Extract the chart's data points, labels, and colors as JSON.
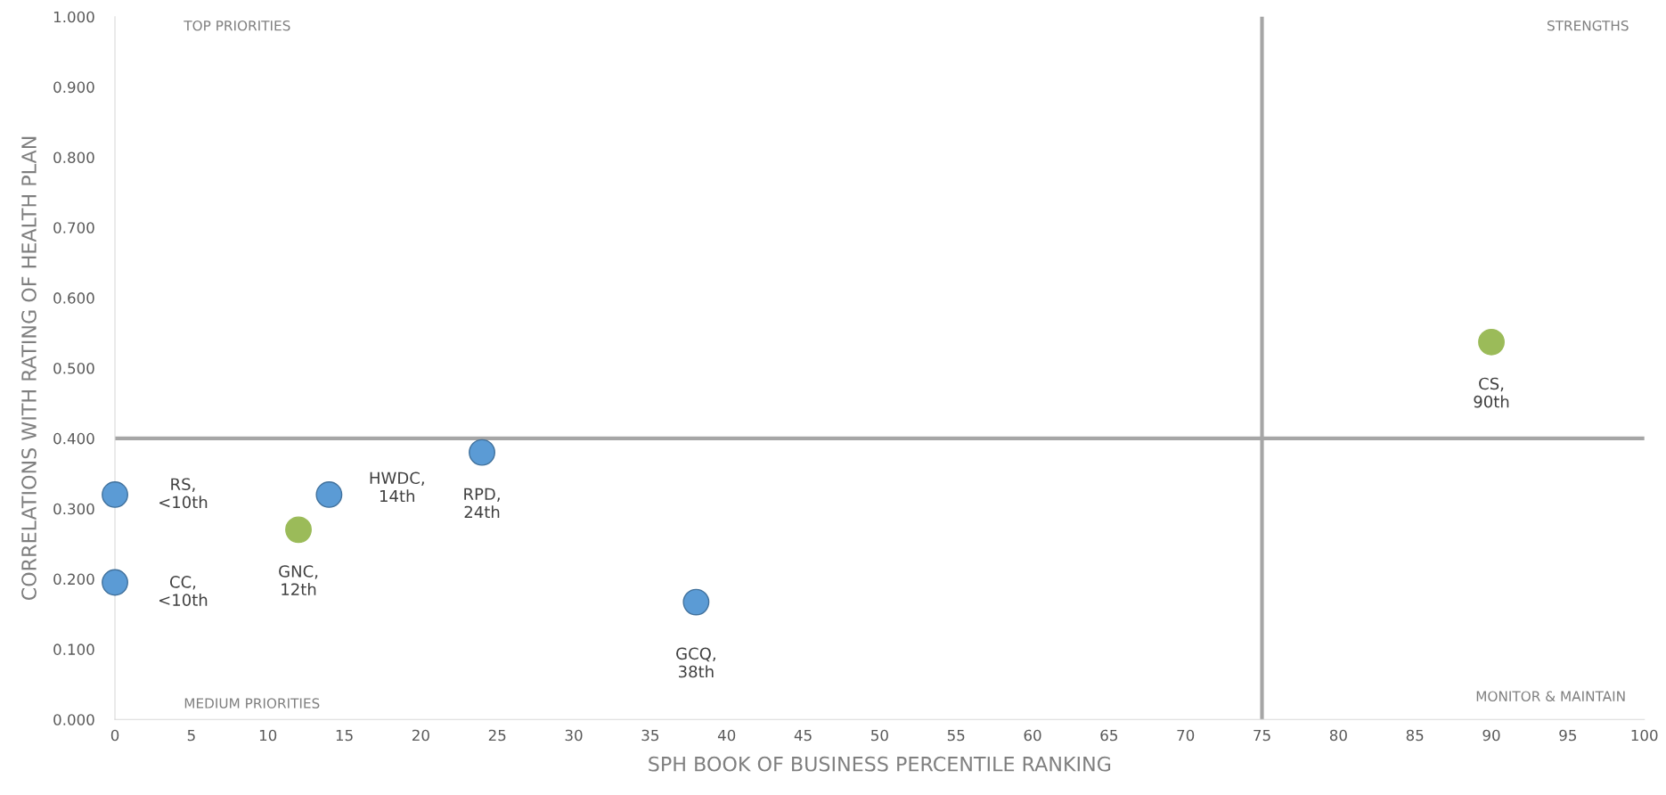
{
  "chart_data": {
    "type": "scatter",
    "xlabel": "SPH BOOK OF BUSINESS PERCENTILE RANKING",
    "ylabel": "CORRELATIONS WITH RATING OF HEALTH PLAN",
    "x": [
      0,
      0,
      12,
      14,
      24,
      38,
      90
    ],
    "values": [
      0.32,
      0.195,
      0.27,
      0.32,
      0.38,
      0.167,
      0.537
    ],
    "colors": [
      "#5b9bd5",
      "#5b9bd5",
      "#9bbb59",
      "#5b9bd5",
      "#5b9bd5",
      "#5b9bd5",
      "#9bbb59"
    ],
    "marker": "circle",
    "xlim": [
      0,
      100
    ],
    "xticks": [
      0,
      5,
      10,
      15,
      20,
      25,
      30,
      35,
      40,
      45,
      50,
      55,
      60,
      65,
      70,
      75,
      80,
      85,
      90,
      95,
      100
    ],
    "ylim": [
      0,
      1
    ],
    "yticks": [
      {
        "value": 0,
        "label": "0.000"
      },
      {
        "value": 0.1,
        "label": "0.100"
      },
      {
        "value": 0.2,
        "label": "0.200"
      },
      {
        "value": 0.3,
        "label": "0.300"
      },
      {
        "value": 0.4,
        "label": "0.400"
      },
      {
        "value": 0.5,
        "label": "0.500"
      },
      {
        "value": 0.6,
        "label": "0.600"
      },
      {
        "value": 0.7,
        "label": "0.700"
      },
      {
        "value": 0.8,
        "label": "0.800"
      },
      {
        "value": 0.9,
        "label": "0.900"
      },
      {
        "value": 1,
        "label": "1.000"
      }
    ],
    "ref_lines": [
      {
        "axis": "x",
        "value": 75,
        "color": "#a6a6a6"
      },
      {
        "axis": "y",
        "value": 0.4,
        "color": "#a6a6a6"
      }
    ],
    "annotations": [
      {
        "text": "RS,\n<10th",
        "x": 0,
        "y": 0.32
      },
      {
        "text": "CC,\n<10th",
        "x": 0,
        "y": 0.195
      },
      {
        "text": "GNC,\n12th",
        "x": 12,
        "y": 0.27
      },
      {
        "text": "HWDC,\n14th",
        "x": 14,
        "y": 0.32
      },
      {
        "text": "RPD,\n24th",
        "x": 24,
        "y": 0.38
      },
      {
        "text": "GCQ,\n38th",
        "x": 38,
        "y": 0.167
      },
      {
        "text": "CS,\n90th",
        "x": 90,
        "y": 0.537
      },
      "TOP PRIORITIES",
      "STRENGTHS",
      "MEDIUM PRIORITIES",
      "MONITOR & MAINTAIN"
    ],
    "grid": false,
    "legend": false
  }
}
